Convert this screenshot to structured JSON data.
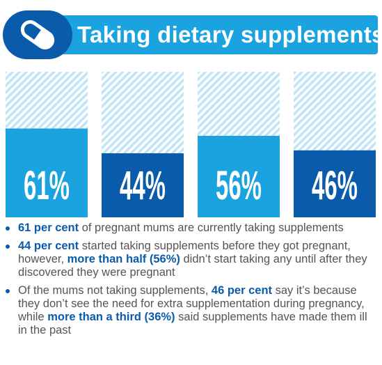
{
  "header": {
    "title": "Taking dietary supplements",
    "icon": "pill-icon",
    "colors": {
      "light": "#1aa3df",
      "dark": "#0b5bab"
    }
  },
  "chart_data": {
    "type": "bar",
    "categories": [
      "pregnant mums currently taking supplements",
      "started taking supplements before they got pregnant",
      "didn't start taking any until after they discovered they were pregnant",
      "mums not taking supplements who don't see the need"
    ],
    "values": [
      61,
      44,
      56,
      46
    ],
    "value_labels": [
      "61%",
      "44%",
      "56%",
      "46%"
    ],
    "ylim": [
      0,
      100
    ],
    "bar_colors": [
      "#1aa3df",
      "#0b5bab",
      "#1aa3df",
      "#0b5bab"
    ],
    "track_fill": "light blue diagonal stripes"
  },
  "bullets": [
    {
      "parts": [
        {
          "text": "61 per cent",
          "highlight": true
        },
        {
          "text": " of pregnant mums are currently taking supplements",
          "highlight": false
        }
      ]
    },
    {
      "parts": [
        {
          "text": "44 per cent",
          "highlight": true
        },
        {
          "text": " started taking supplements before they got pregnant, however, ",
          "highlight": false
        },
        {
          "text": "more than half (56%)",
          "highlight": true
        },
        {
          "text": " didn’t start taking any until after they discovered they were pregnant",
          "highlight": false
        }
      ]
    },
    {
      "parts": [
        {
          "text": "Of the mums not taking supplements, ",
          "highlight": false
        },
        {
          "text": "46 per cent",
          "highlight": true
        },
        {
          "text": " say it’s because they don’t see the need for extra supplementation during pregnancy, while ",
          "highlight": false
        },
        {
          "text": "more than a third (36%)",
          "highlight": true
        },
        {
          "text": " said supplements have made them ill in the past",
          "highlight": false
        }
      ]
    }
  ]
}
